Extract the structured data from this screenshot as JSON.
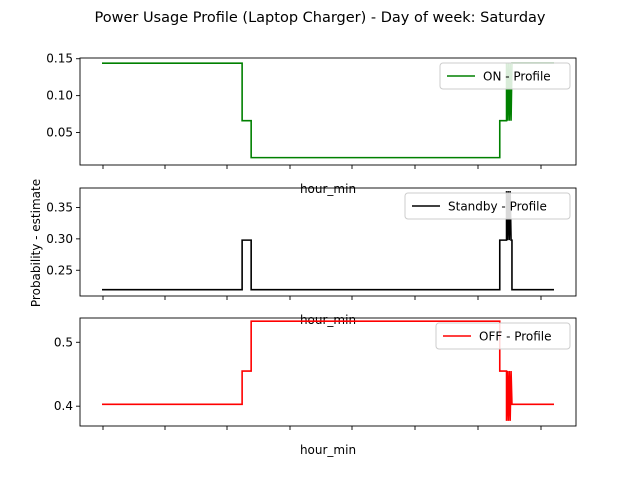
{
  "figure": {
    "title": "Power Usage Profile (Laptop Charger) - Day of week: Saturday",
    "shared_ylabel": "Probability - estimate"
  },
  "chart_data": [
    {
      "type": "line",
      "title": "",
      "xlabel": "hour_min",
      "ylabel": "",
      "x_domain": [
        0,
        100
      ],
      "ylim": [
        0.006,
        0.151
      ],
      "yticks": [
        0.05,
        0.1,
        0.15
      ],
      "ytick_labels": [
        "0.05",
        "0.10",
        "0.15"
      ],
      "grid": false,
      "legend_position": "top-right",
      "series": [
        {
          "name": "ON - Profile",
          "color": "#008000",
          "points": [
            [
              0,
              0.144
            ],
            [
              31,
              0.144
            ],
            [
              31,
              0.066
            ],
            [
              33,
              0.066
            ],
            [
              33,
              0.016
            ],
            [
              88,
              0.016
            ],
            [
              88,
              0.066
            ],
            [
              89.5,
              0.066
            ],
            [
              89.5,
              0.144
            ],
            [
              89.7,
              0.066
            ],
            [
              89.9,
              0.144
            ],
            [
              90.1,
              0.066
            ],
            [
              90.3,
              0.144
            ],
            [
              90.5,
              0.066
            ],
            [
              90.7,
              0.144
            ],
            [
              100,
              0.144
            ]
          ]
        }
      ]
    },
    {
      "type": "line",
      "title": "",
      "xlabel": "hour_min",
      "ylabel": "",
      "x_domain": [
        0,
        100
      ],
      "ylim": [
        0.209,
        0.381
      ],
      "yticks": [
        0.25,
        0.3,
        0.35
      ],
      "ytick_labels": [
        "0.25",
        "0.30",
        "0.35"
      ],
      "grid": false,
      "legend_position": "top-right",
      "series": [
        {
          "name": "Standby - Profile",
          "color": "#000000",
          "points": [
            [
              0,
              0.219
            ],
            [
              31,
              0.219
            ],
            [
              31,
              0.298
            ],
            [
              33,
              0.298
            ],
            [
              33,
              0.219
            ],
            [
              88,
              0.219
            ],
            [
              88,
              0.298
            ],
            [
              89.5,
              0.298
            ],
            [
              89.5,
              0.376
            ],
            [
              89.7,
              0.298
            ],
            [
              89.9,
              0.376
            ],
            [
              90.1,
              0.298
            ],
            [
              90.3,
              0.376
            ],
            [
              90.5,
              0.298
            ],
            [
              90.7,
              0.298
            ],
            [
              90.7,
              0.219
            ],
            [
              100,
              0.219
            ]
          ]
        }
      ]
    },
    {
      "type": "line",
      "title": "",
      "xlabel": "hour_min",
      "ylabel": "",
      "x_domain": [
        0,
        100
      ],
      "ylim": [
        0.369,
        0.538
      ],
      "yticks": [
        0.4,
        0.5
      ],
      "ytick_labels": [
        "0.4",
        "0.5"
      ],
      "grid": false,
      "legend_position": "top-right",
      "series": [
        {
          "name": "OFF - Profile",
          "color": "#ff0000",
          "points": [
            [
              0,
              0.403
            ],
            [
              31,
              0.403
            ],
            [
              31,
              0.455
            ],
            [
              33,
              0.455
            ],
            [
              33,
              0.533
            ],
            [
              88,
              0.533
            ],
            [
              88,
              0.455
            ],
            [
              89.5,
              0.455
            ],
            [
              89.5,
              0.377
            ],
            [
              89.7,
              0.455
            ],
            [
              89.9,
              0.377
            ],
            [
              90.1,
              0.455
            ],
            [
              90.3,
              0.377
            ],
            [
              90.5,
              0.455
            ],
            [
              90.7,
              0.403
            ],
            [
              100,
              0.403
            ]
          ]
        }
      ]
    }
  ]
}
